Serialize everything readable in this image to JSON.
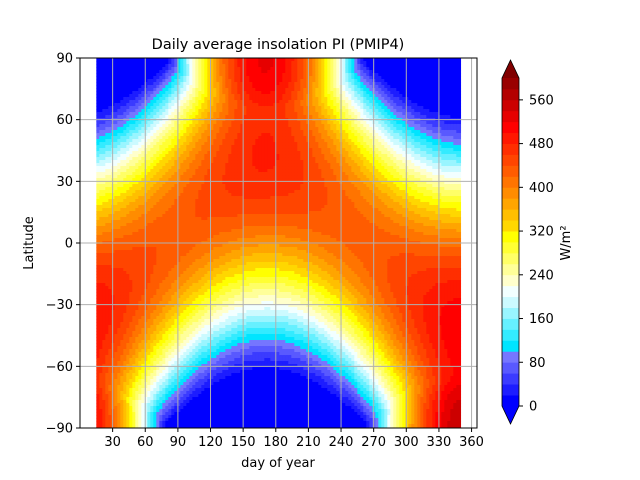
{
  "chart_data": {
    "type": "heatmap",
    "title": "Daily average insolation PI (PMIP4)",
    "xlabel": "day of year",
    "ylabel": "Latitude",
    "xlim": [
      0,
      365
    ],
    "ylim": [
      -90,
      90
    ],
    "data_x_range": [
      15,
      350
    ],
    "xticks": [
      "30",
      "60",
      "90",
      "120",
      "150",
      "180",
      "210",
      "240",
      "270",
      "300",
      "330",
      "360"
    ],
    "yticks": [
      "90",
      "60",
      "30",
      "0",
      "−30",
      "−60",
      "−90"
    ],
    "grid": true,
    "colorbar": {
      "label": "W/m²",
      "min": 0,
      "max": 600,
      "step": 20,
      "extend": "both",
      "ticks": [
        "0",
        "80",
        "160",
        "240",
        "320",
        "400",
        "480",
        "560"
      ],
      "colors": [
        "#0000ff",
        "#1d1dff",
        "#3b3bff",
        "#5959ff",
        "#7676ff",
        "#00e5ff",
        "#33ebff",
        "#66f0ff",
        "#99f5ff",
        "#ccfaff",
        "#f2ffff",
        "#ffffcc",
        "#ffff99",
        "#ffff66",
        "#ffff33",
        "#ffff00",
        "#ffd700",
        "#ffbf00",
        "#ffa500",
        "#ff8c00",
        "#ff7400",
        "#ff5c00",
        "#ff4500",
        "#ff2e00",
        "#ff1700",
        "#ff0000",
        "#e60000",
        "#cc0000",
        "#b30000",
        "#990000"
      ],
      "under_color": "#0000ff",
      "over_color": "#800000"
    },
    "field": "daily mean top-of-atmosphere insolation as a function of day of year and latitude"
  }
}
